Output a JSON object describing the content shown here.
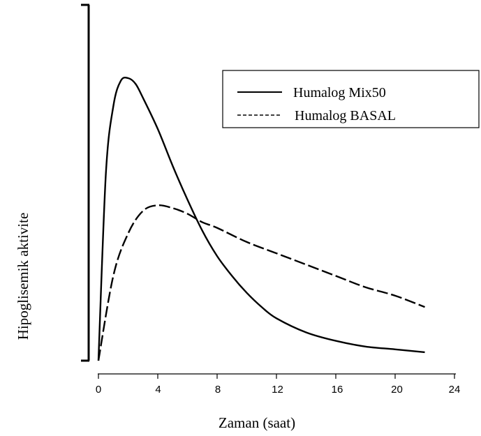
{
  "chart_data": {
    "type": "line",
    "title": "",
    "xlabel": "Zaman (saat)",
    "ylabel": "Hipoglisemik aktivite",
    "xlim": [
      0,
      24
    ],
    "x_ticks": [
      "0",
      "4",
      "8",
      "12",
      "16",
      "20",
      "24"
    ],
    "ylim": [
      0,
      1
    ],
    "y_tick_labels": false,
    "grid": false,
    "legend_position": "top-right",
    "series": [
      {
        "name": "Humalog Mix50",
        "style": "solid",
        "color": "#000000",
        "x": [
          0,
          0.5,
          1,
          1.5,
          2,
          2.5,
          3,
          4,
          5,
          6,
          7,
          8,
          9,
          10,
          11,
          12,
          14,
          16,
          18,
          20,
          22
        ],
        "y": [
          0.0,
          0.66,
          0.9,
          0.99,
          1.0,
          0.98,
          0.93,
          0.82,
          0.69,
          0.57,
          0.46,
          0.37,
          0.3,
          0.24,
          0.19,
          0.15,
          0.1,
          0.07,
          0.05,
          0.04,
          0.03
        ]
      },
      {
        "name": "Humalog BASAL",
        "style": "dashed",
        "color": "#000000",
        "x": [
          0,
          1,
          2,
          3,
          4,
          5,
          6,
          7,
          8,
          10,
          12,
          14,
          16,
          18,
          20,
          22
        ],
        "y": [
          0.0,
          0.3,
          0.45,
          0.53,
          0.55,
          0.54,
          0.52,
          0.49,
          0.47,
          0.42,
          0.38,
          0.34,
          0.3,
          0.26,
          0.23,
          0.19
        ]
      }
    ]
  }
}
